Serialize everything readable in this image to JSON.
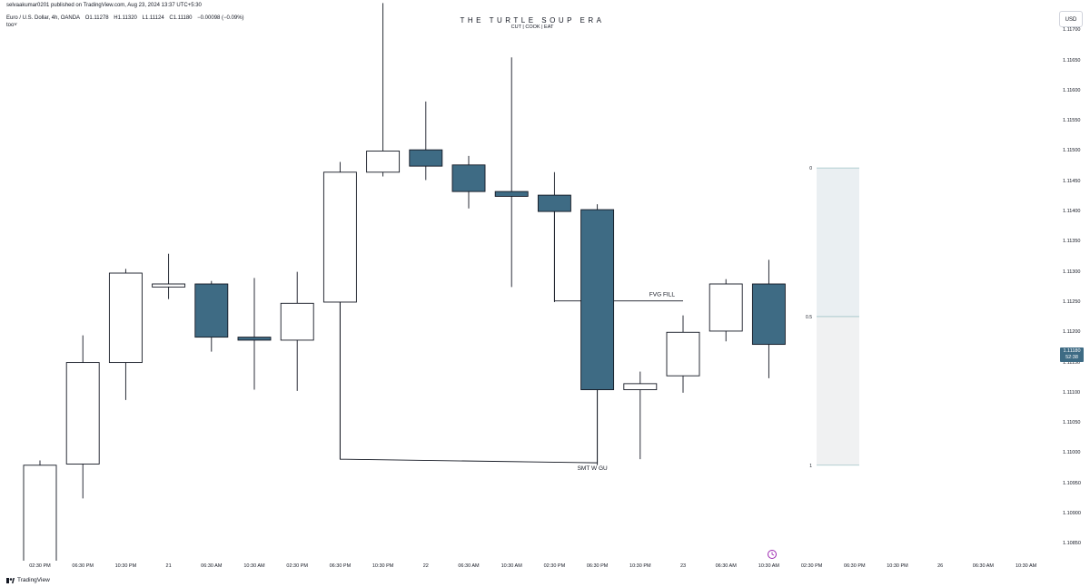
{
  "header": {
    "published": "selvaakumar0201 published on TradingView.com, Aug 23, 2024 13:37 UTC+5:30",
    "pair": "Euro / U.S. Dollar, 4h, OANDA",
    "ohlc": [
      "O1.11278",
      "H1.11320",
      "L1.11124",
      "C1.11180",
      "−0.00098 (−0.09%)"
    ],
    "indicator": "too˅"
  },
  "watermark": {
    "title": "THE TURTLE SOUP ERA",
    "subtitle": "CUT | COOK | EAT"
  },
  "currency": "USD",
  "last_price": {
    "value": "1.11180",
    "countdown": "52:38"
  },
  "footer": {
    "brand": "TradingView"
  },
  "colors": {
    "bear": "#3e6b84",
    "bull": "#ffffff",
    "outline": "#131722",
    "zone": "#eaeff2",
    "midline": "#9fc3c7",
    "clock": "#9c27b0"
  },
  "chart_data": {
    "type": "candlestick",
    "y_ticks": [
      1.1085,
      1.109,
      1.1095,
      1.11,
      1.1105,
      1.111,
      1.1115,
      1.112,
      1.1125,
      1.113,
      1.1135,
      1.114,
      1.1145,
      1.115,
      1.1155,
      1.116,
      1.1165,
      1.117
    ],
    "y_tick_labels": [
      "1.10850",
      "1.10900",
      "1.10950",
      "1.11000",
      "1.11050",
      "1.11100",
      "1.11150",
      "1.11200",
      "1.11250",
      "1.11300",
      "1.11350",
      "1.11400",
      "1.11450",
      "1.11500",
      "1.11550",
      "1.11600",
      "1.11650",
      "1.11700"
    ],
    "ylim": [
      1.10822,
      1.1175
    ],
    "x_labels": [
      "02:30 PM",
      "06:30 PM",
      "10:30 PM",
      "21",
      "06:30 AM",
      "10:30 AM",
      "02:30 PM",
      "06:30 PM",
      "10:30 PM",
      "22",
      "06:30 AM",
      "10:30 AM",
      "02:30 PM",
      "06:30 PM",
      "10:30 PM",
      "23",
      "06:30 AM",
      "10:30 AM",
      "02:30 PM",
      "06:30 PM",
      "10:30 PM",
      "26",
      "06:30 AM",
      "10:30 AM"
    ],
    "candles": [
      {
        "time": "02:30 PM",
        "o": 1.10815,
        "h": 1.10988,
        "l": 1.108,
        "c": 1.1098
      },
      {
        "time": "06:30 PM",
        "o": 1.10982,
        "h": 1.11195,
        "l": 1.10925,
        "c": 1.1115
      },
      {
        "time": "10:30 PM",
        "o": 1.1115,
        "h": 1.11305,
        "l": 1.11088,
        "c": 1.11298
      },
      {
        "time": "21",
        "o": 1.11275,
        "h": 1.1133,
        "l": 1.11255,
        "c": 1.1128
      },
      {
        "time": "06:30 AM",
        "o": 1.1128,
        "h": 1.11285,
        "l": 1.11168,
        "c": 1.11192
      },
      {
        "time": "10:30 AM",
        "o": 1.11192,
        "h": 1.1129,
        "l": 1.11105,
        "c": 1.11187
      },
      {
        "time": "02:30 PM",
        "o": 1.11187,
        "h": 1.113,
        "l": 1.11103,
        "c": 1.11248
      },
      {
        "time": "06:30 PM",
        "o": 1.1125,
        "h": 1.11482,
        "l": 1.1099,
        "c": 1.11465
      },
      {
        "time": "10:30 PM",
        "o": 1.11465,
        "h": 1.11745,
        "l": 1.11458,
        "c": 1.115
      },
      {
        "time": "22",
        "o": 1.11502,
        "h": 1.11582,
        "l": 1.11452,
        "c": 1.11475
      },
      {
        "time": "06:30 AM",
        "o": 1.11477,
        "h": 1.11492,
        "l": 1.11405,
        "c": 1.11433
      },
      {
        "time": "10:30 AM",
        "o": 1.11433,
        "h": 1.11655,
        "l": 1.11275,
        "c": 1.11425
      },
      {
        "time": "02:30 PM",
        "o": 1.11427,
        "h": 1.11465,
        "l": 1.1125,
        "c": 1.114
      },
      {
        "time": "06:30 PM",
        "o": 1.11403,
        "h": 1.11412,
        "l": 1.1098,
        "c": 1.11105
      },
      {
        "time": "10:30 PM",
        "o": 1.11105,
        "h": 1.11135,
        "l": 1.1099,
        "c": 1.11115
      },
      {
        "time": "23",
        "o": 1.11128,
        "h": 1.11228,
        "l": 1.111,
        "c": 1.112
      },
      {
        "time": "06:30 AM",
        "o": 1.11202,
        "h": 1.11288,
        "l": 1.11185,
        "c": 1.1128
      },
      {
        "time": "10:30 AM",
        "o": 1.1128,
        "h": 1.1132,
        "l": 1.11124,
        "c": 1.1118
      }
    ],
    "annotations": [
      {
        "text": "FVG FILL",
        "price": 1.11252
      },
      {
        "text": "SMT W GU",
        "price": 1.1099
      }
    ],
    "fib_zone": {
      "level_0": 1.11472,
      "level_1": 1.1098,
      "labels": [
        "0",
        "0.5",
        "1"
      ]
    }
  }
}
